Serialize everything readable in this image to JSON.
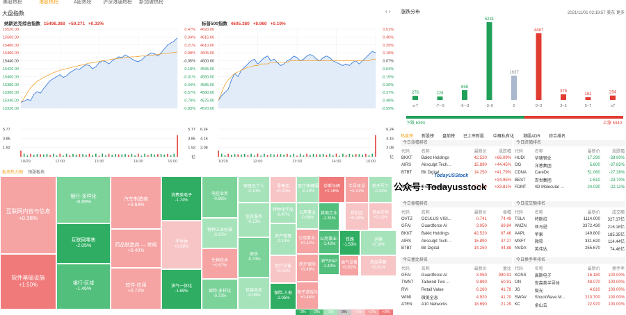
{
  "top_tabs": [
    "美股热榜",
    "港股热榜",
    "A股热榜",
    "沪深港通热榜",
    "新加坡热榜"
  ],
  "left_panel": {
    "title": "大盘指数"
  },
  "nasdaq": {
    "name": "纳斯达克综合指数",
    "price": "15498.388",
    "change": "+50.271",
    "pct": "+0.33%",
    "y_labels": [
      "15520.00",
      "15500.00",
      "15480.00",
      "15460.00",
      "15440.00",
      "15420.00",
      "15400.00",
      "15380.00",
      "15360.00",
      "15340.00",
      "15320.00"
    ],
    "pct_labels": [
      "0.47%",
      "0.34%",
      "0.21%",
      "0.08%",
      "-0.05%",
      "-0.18%",
      "-0.31%",
      "-0.44%",
      "-0.57%",
      "-0.70%",
      "-0.83%"
    ],
    "vol_labels": [
      "5.77",
      "3.85",
      "1.92"
    ],
    "vol_right": [
      "5.77",
      "3.85",
      "1.92",
      "亿"
    ],
    "x_labels": [
      "10/29",
      "12:00",
      "13:30",
      "14:30",
      "16:00"
    ],
    "series": [
      15335,
      15338,
      15342,
      15340,
      15355,
      15362,
      15358,
      15370,
      15380,
      15390,
      15395,
      15400,
      15405,
      15398,
      15402,
      15410,
      15415,
      15420,
      15418,
      15425,
      15430,
      15428,
      15420,
      15425,
      15435,
      15440,
      15438,
      15432,
      15440,
      15445,
      15450,
      15448,
      15455,
      15450,
      15445,
      15440,
      15438,
      15442,
      15450,
      15455,
      15460,
      15458,
      15452,
      15460,
      15470,
      15480,
      15485,
      15490,
      15498
    ],
    "avg": [
      15335,
      15345,
      15360,
      15372,
      15380,
      15388,
      15393,
      15398,
      15402,
      15406,
      15410,
      15413,
      15416,
      15418,
      15420,
      15422,
      15424,
      15426,
      15428,
      15430,
      15432,
      15434,
      15435,
      15437,
      15438,
      15440,
      15441,
      15442,
      15444,
      15445,
      15446,
      15447,
      15448,
      15449,
      15450,
      15450,
      15451,
      15452,
      15452,
      15453,
      15454,
      15455,
      15456,
      15457,
      15458,
      15459,
      15460,
      15461,
      15462
    ]
  },
  "sp500": {
    "name": "标普500指数",
    "price": "4605.380",
    "change": "+8.960",
    "pct": "+0.19%",
    "y_labels": [
      "4620.00",
      "4615.00",
      "4610.00",
      "4605.00",
      "4600.00",
      "4595.00",
      "4590.00",
      "4585.00",
      "4580.00",
      "4575.00",
      "4570.00"
    ],
    "pct_labels": [
      "0.51%",
      "0.40%",
      "0.29%",
      "0.18%",
      "0.07%",
      "-0.04%",
      "-0.15%",
      "-0.26%",
      "-0.37%",
      "-0.48%",
      "-0.59%"
    ],
    "vol_labels": [
      "6.24",
      "4.16",
      "2.08"
    ],
    "vol_right": [
      "6.24",
      "4.16",
      "2.08",
      "亿"
    ],
    "x_labels": [
      "10/29",
      "12:00",
      "13:30",
      "14:30",
      "16:00"
    ],
    "series": [
      4575,
      4578,
      4580,
      4582,
      4588,
      4592,
      4590,
      4594,
      4596,
      4598,
      4600,
      4601,
      4598,
      4600,
      4602,
      4603,
      4600,
      4601,
      4599,
      4597,
      4598,
      4600,
      4601,
      4603,
      4602,
      4600,
      4601,
      4603,
      4604,
      4603,
      4601,
      4600,
      4602,
      4603,
      4602,
      4600,
      4599,
      4598,
      4597,
      4598,
      4597,
      4599,
      4600,
      4598,
      4600,
      4602,
      4604,
      4606,
      4605
    ],
    "avg": [
      4575,
      4580,
      4585,
      4588,
      4590,
      4592,
      4593,
      4594,
      4595,
      4596,
      4596,
      4597,
      4597,
      4598,
      4598,
      4598,
      4599,
      4599,
      4599,
      4599,
      4599,
      4599,
      4600,
      4600,
      4600,
      4600,
      4600,
      4600,
      4600,
      4600,
      4600,
      4600,
      4600,
      4600,
      4600,
      4600,
      4600,
      4600,
      4600,
      4600,
      4600,
      4600,
      4600,
      4600,
      4600,
      4600,
      4600,
      4601,
      4601
    ]
  },
  "heatmap": {
    "tabs": [
      "板块热力图",
      "领涨板块"
    ],
    "tiles": [
      {
        "name": "互联网内容与信息",
        "pct": "+0.38%"
      },
      {
        "name": "软件基础设施",
        "pct": "+1.50%"
      },
      {
        "name": "银行-多样化",
        "pct": "-0.69%"
      },
      {
        "name": "互联网零售",
        "pct": "-2.05%"
      },
      {
        "name": "银行-区域",
        "pct": "-1.46%"
      },
      {
        "name": "汽车制造商",
        "pct": "+0.69%"
      },
      {
        "name": "药品制造商 — 常规",
        "pct": "+0.40%"
      },
      {
        "name": "软件-应用",
        "pct": "+0.72%"
      },
      {
        "name": "消费类电子",
        "pct": "-1.74%"
      },
      {
        "name": "半导体",
        "pct": "+0.09%"
      },
      {
        "name": "油气一体化",
        "pct": "-1.69%"
      },
      {
        "name": "电信业务",
        "pct": "-0.86%"
      },
      {
        "name": "特种工业机械",
        "pct": "-0.37%"
      },
      {
        "name": "生物技术",
        "pct": "+0.67%"
      },
      {
        "name": "保险-多样化",
        "pct": "-0.72%"
      },
      {
        "name": "家庭及个人",
        "pct": "-0.10%"
      },
      {
        "name": "信息服务",
        "pct": "-0.13%"
      },
      {
        "name": "娱乐",
        "pct": "-0.74%"
      },
      {
        "name": "包装食品",
        "pct": "-0.08%"
      },
      {
        "name": "零售店",
        "pct": "+0.20%"
      },
      {
        "name": "特种化学品",
        "pct": "-0.47%"
      },
      {
        "name": "资产管理",
        "pct": "-0.14%"
      },
      {
        "name": "医疗设备",
        "pct": "+0.03%"
      },
      {
        "name": "保险-人寿",
        "pct": "-2.05%"
      },
      {
        "name": "医疗保健服",
        "pct": "-0.10%"
      },
      {
        "name": "公用事业",
        "pct": "-0.09%"
      },
      {
        "name": "公用事业-",
        "pct": "+0.42%"
      },
      {
        "name": "医疗保险",
        "pct": "+0.49%"
      },
      {
        "name": "电子游戏与",
        "pct": "+0.44%"
      },
      {
        "name": "诊断与研",
        "pct": "+1.16%"
      },
      {
        "name": "其他工业",
        "pct": "-1.31%"
      },
      {
        "name": "公用事业-",
        "pct": "-1.42%"
      },
      {
        "name": "油气E&P",
        "pct": "-1.40%"
      },
      {
        "name": "半导体设",
        "pct": "+0.31%"
      },
      {
        "name": "折扣店",
        "pct": "+0.16%"
      },
      {
        "name": "铁路",
        "pct": "-1.58%"
      },
      {
        "name": "油气设备",
        "pct": "+0.62%"
      },
      {
        "name": "航天军工",
        "pct": "-0.42%"
      },
      {
        "name": "资本市场",
        "pct": "+0.15%"
      },
      {
        "name": "运输",
        "pct": "-0.19%"
      },
      {
        "name": "药品零售",
        "pct": "+0.01%"
      }
    ],
    "legend": [
      "-3%",
      "-2%",
      "-1%",
      "0%",
      "+1%",
      "+2%",
      "+3%"
    ]
  },
  "right_panel": {
    "title": "涨跌分布",
    "timestamp": "2021/11/01 02:19:57 美东",
    "more": "更多"
  },
  "distribution": {
    "bins": [
      {
        "label": "≤-7",
        "count": "276",
        "value": 276,
        "color": "#21a05a"
      },
      {
        "label": "-7~-5",
        "count": "228",
        "value": 228,
        "color": "#21a05a"
      },
      {
        "label": "-5~-3",
        "count": "658",
        "value": 658,
        "color": "#21a05a"
      },
      {
        "label": "-3~0",
        "count": "5231",
        "value": 5231,
        "color": "#21a05a"
      },
      {
        "label": "0",
        "count": "1637",
        "value": 1637,
        "color": "#a9b8cc"
      },
      {
        "label": "0~3",
        "count": "4487",
        "value": 4487,
        "color": "#e03c31"
      },
      {
        "label": "3~5",
        "count": "378",
        "value": 378,
        "color": "#e03c31"
      },
      {
        "label": "5~7",
        "count": "181",
        "value": 181,
        "color": "#e03c31"
      },
      {
        "label": "≥7",
        "count": "294",
        "value": 294,
        "color": "#e03c31"
      }
    ],
    "down_label": "下跌 6393",
    "up_label": "上涨 5340"
  },
  "list_tabs": [
    "热度榜",
    "新股榜",
    "盘前榜",
    "已上市新股",
    "中概私有化",
    "港股ADR",
    "综合排名"
  ],
  "gainers": {
    "title": "今日涨幅排名",
    "headers": [
      "代码",
      "名称",
      "最新价",
      "涨跌幅"
    ],
    "rows": [
      [
        "BKKT",
        "Bakkt Holdings",
        "42.520",
        "+66.09%"
      ],
      [
        "AIRS",
        "Airsculpt Tech...",
        "15.890",
        "+44.45%"
      ],
      [
        "BTBT",
        "Bit Digital",
        "14.250",
        "+41.79%"
      ],
      [
        "",
        "",
        "",
        "+34.95%"
      ],
      [
        "GREE",
        "Greenidge Ge...",
        "27.190",
        "+33.81%"
      ]
    ]
  },
  "losers": {
    "title": "今日跌幅排名",
    "headers": [
      "代码",
      "名称",
      "最新价",
      "涨跌幅"
    ],
    "rows": [
      [
        "HUDI",
        "华德钢业",
        "17.290",
        "-38.90%"
      ],
      [
        "OG",
        "洋葱集团",
        "5.600",
        "-37.85%"
      ],
      [
        "CDNA",
        "CareDx",
        "51.060",
        "-27.38%"
      ],
      [
        "BEST",
        "百世集团",
        "1.610",
        "-23.70%"
      ],
      [
        "FDMT",
        "4D Molecular ...",
        "24.030",
        "-22.11%"
      ]
    ]
  },
  "amplitude": {
    "title": "今日振幅排名",
    "headers": [
      "代码",
      "名称",
      "最新价",
      "振幅"
    ],
    "rows": [
      [
        "OVTZ",
        "OCULUS VISI...",
        "0.741",
        "74.49"
      ],
      [
        "GFAI",
        "Guardforce AI",
        "3.050",
        "69.84"
      ],
      [
        "BKKT",
        "Bakkt Holdings",
        "42.520",
        "67.46"
      ],
      [
        "AIRS",
        "Airsculpt Tech...",
        "15.890",
        "47.27"
      ],
      [
        "BTBT",
        "Bit Digital",
        "14.250",
        "44.88"
      ]
    ]
  },
  "turnover": {
    "title": "今日成交额排名",
    "headers": [
      "代码",
      "名称",
      "最新价",
      "成交额"
    ],
    "rows": [
      [
        "TSLA",
        "特斯拉",
        "1114.000",
        "327.37亿"
      ],
      [
        "AMZN",
        "亚马逊",
        "3372.430",
        "216.18亿"
      ],
      [
        "AAPL",
        "苹果",
        "149.800",
        "185.35亿"
      ],
      [
        "MSFT",
        "微软",
        "331.620",
        "114.44亿"
      ],
      [
        "NVDA",
        "英伟达",
        "255.670",
        "74.46亿"
      ]
    ]
  },
  "volume_ratio": {
    "title": "今日量比排名",
    "headers": [
      "代码",
      "名称",
      "最新价",
      "量比"
    ],
    "rows": [
      [
        "GFAI",
        "Guardforce AI",
        "3.050",
        "990.91"
      ],
      [
        "TWNT",
        "Tailwind Two ...",
        "9.890",
        "50.91"
      ],
      [
        "RVI",
        "Retail Value",
        "6.260",
        "41.79"
      ],
      [
        "WIMI",
        "微美全息",
        "4.920",
        "41.70"
      ],
      [
        "ATEN",
        "A10 Networks",
        "18.690",
        "21.29"
      ]
    ]
  },
  "turnover_rate": {
    "title": "今日换手率排名",
    "headers": [
      "代码",
      "名称",
      "最新价",
      "换手率"
    ],
    "rows": [
      [
        "KOSS",
        "高斯电子",
        "16.180",
        "100.00%"
      ],
      [
        "ON",
        "安森美半导体",
        "48.070",
        "100.00%"
      ],
      [
        "JG",
        "极光",
        "4.610",
        "100.00%"
      ],
      [
        "SWAV",
        "ShockWave M...",
        "213.700",
        "100.00%"
      ],
      [
        "KC",
        "金山云",
        "22.970",
        "100.00%"
      ]
    ]
  },
  "watermark": {
    "text": "公众号: Todayusstock",
    "logo": "TodayUSStock"
  }
}
